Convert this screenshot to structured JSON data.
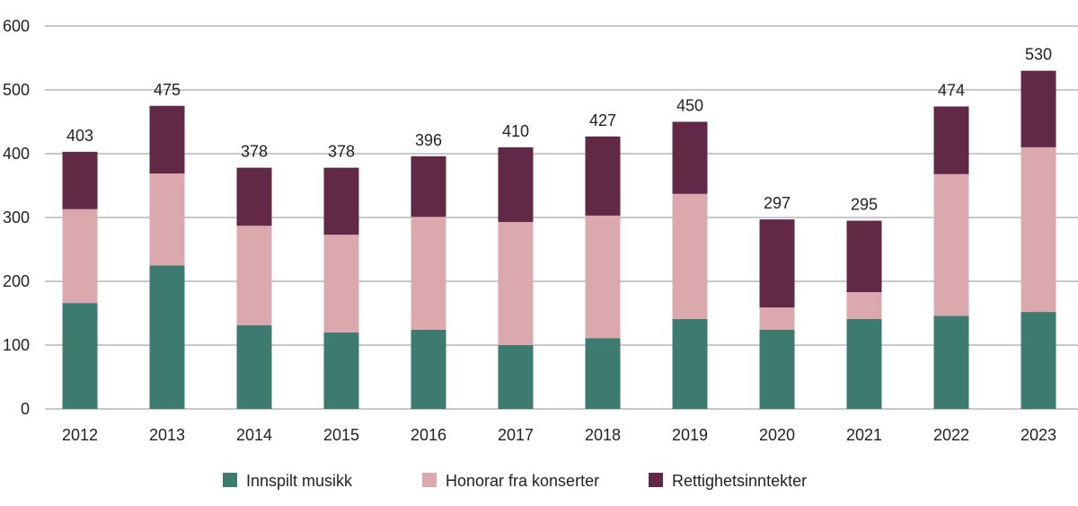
{
  "chart_data": {
    "type": "bar",
    "stacked": true,
    "title": "",
    "xlabel": "",
    "ylabel": "",
    "ylim": [
      0,
      600
    ],
    "yticks": [
      0,
      100,
      200,
      300,
      400,
      500,
      600
    ],
    "grid": true,
    "legend_position": "bottom",
    "categories": [
      "2012",
      "2013",
      "2014",
      "2015",
      "2016",
      "2017",
      "2018",
      "2019",
      "2020",
      "2021",
      "2022",
      "2023"
    ],
    "series": [
      {
        "name": "Innspilt musikk",
        "color": "#3d7b70",
        "values": [
          166,
          225,
          131,
          120,
          124,
          100,
          111,
          141,
          124,
          141,
          146,
          152
        ]
      },
      {
        "name": "Honorar fra konserter",
        "color": "#dba8ad",
        "values": [
          147,
          144,
          156,
          153,
          177,
          193,
          192,
          196,
          35,
          42,
          222,
          258
        ]
      },
      {
        "name": "Rettighetsinntekter",
        "color": "#612945",
        "values": [
          90,
          106,
          91,
          105,
          95,
          117,
          124,
          113,
          138,
          112,
          106,
          120
        ]
      }
    ],
    "totals": [
      "403",
      "475",
      "378",
      "378",
      "396",
      "410",
      "427",
      "450",
      "297",
      "295",
      "474",
      "530"
    ]
  }
}
